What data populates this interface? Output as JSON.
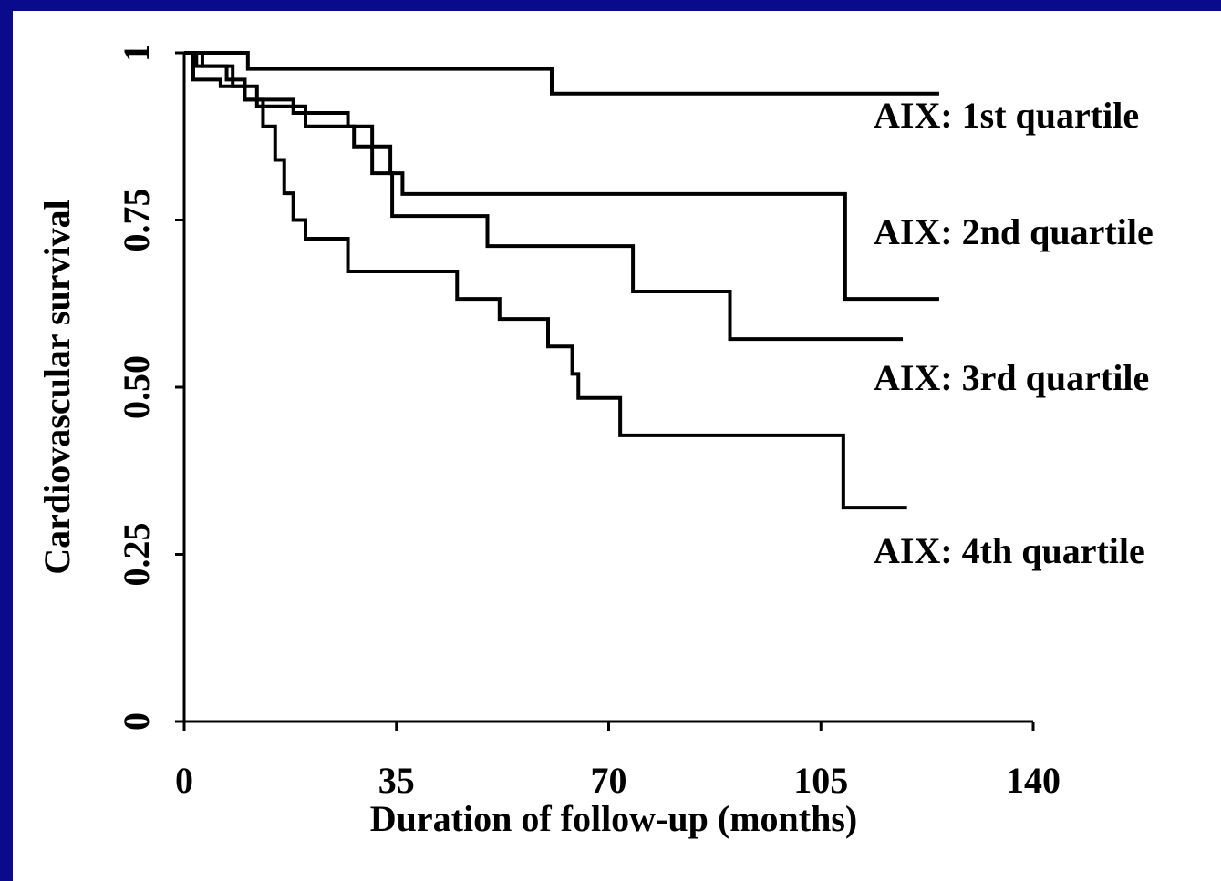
{
  "chart_data": {
    "type": "step",
    "xlabel": "Duration of follow-up (months)",
    "ylabel": "Cardiovascular survival",
    "xlim": [
      0,
      140
    ],
    "xticks": [
      0,
      35,
      70,
      105,
      140
    ],
    "ylim": [
      0,
      1
    ],
    "yticks": [
      0,
      0.25,
      {
        "value": 0.5,
        "label": "0.50"
      },
      0.75,
      1
    ],
    "color": "#000000",
    "series": [
      {
        "name": "AIX: 1st quartile",
        "x": [
          0,
          10.5,
          60.6,
          124.5
        ],
        "values": [
          1,
          0.976,
          0.939,
          0.939
        ]
      },
      {
        "name": "AIX: 2nd quartile",
        "x": [
          0,
          2,
          7,
          10,
          18,
          27,
          31,
          34,
          36,
          109,
          124.5
        ],
        "values": [
          1,
          0.98,
          0.96,
          0.93,
          0.91,
          0.89,
          0.86,
          0.82,
          0.789,
          0.632,
          0.632
        ]
      },
      {
        "name": "AIX: 3rd quartile",
        "x": [
          0,
          3,
          8,
          12,
          20,
          28,
          31,
          34.3,
          50,
          74,
          90,
          118.5
        ],
        "values": [
          1,
          0.98,
          0.95,
          0.92,
          0.89,
          0.86,
          0.82,
          0.756,
          0.711,
          0.643,
          0.572,
          0.572
        ]
      },
      {
        "name": "AIX: 4th quartile",
        "x": [
          0,
          1.5,
          6,
          10,
          13,
          15,
          16.5,
          18,
          20,
          27,
          45,
          52,
          60,
          64,
          65,
          71.9,
          108.7,
          119.2
        ],
        "values": [
          1,
          0.96,
          0.95,
          0.93,
          0.89,
          0.84,
          0.79,
          0.75,
          0.722,
          0.673,
          0.632,
          0.602,
          0.561,
          0.52,
          0.484,
          0.428,
          0.32,
          0.32
        ]
      }
    ]
  }
}
